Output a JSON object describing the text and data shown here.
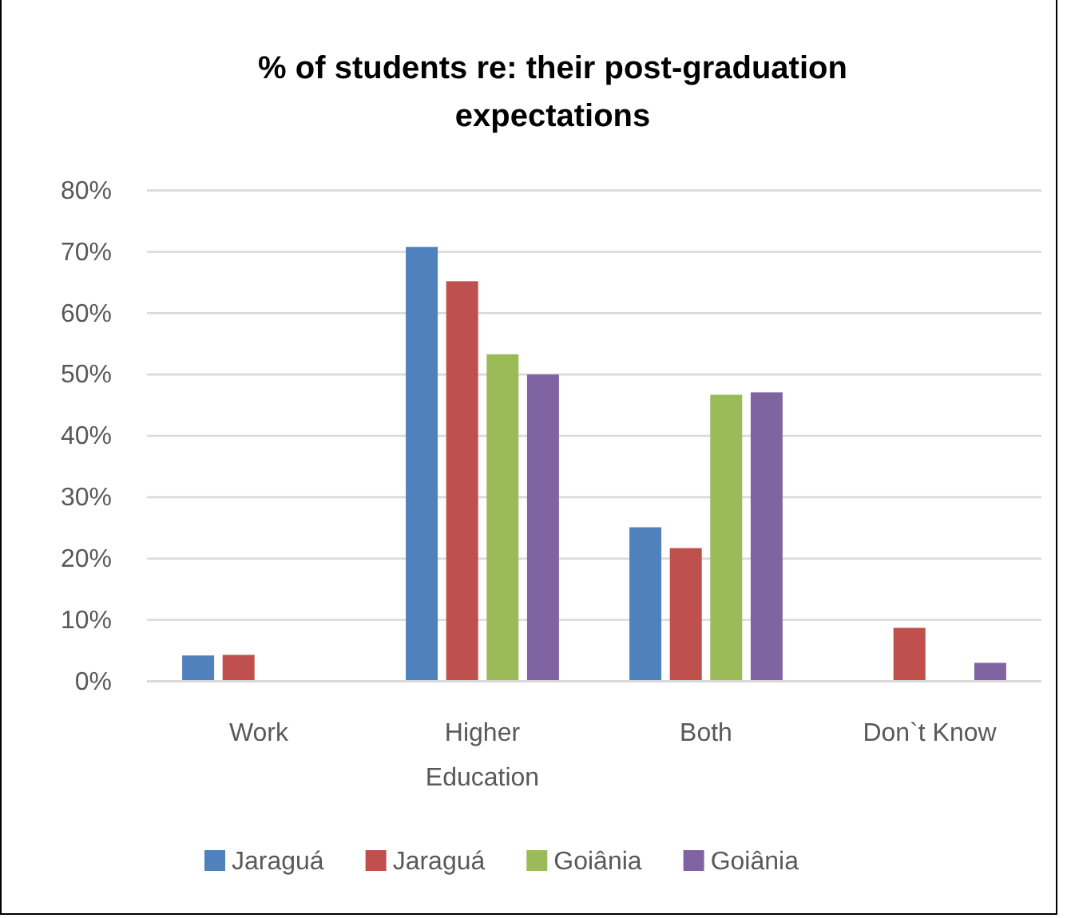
{
  "chart_data": {
    "type": "bar",
    "title": "% of students re: their post-graduation expectations",
    "categories": [
      "Work",
      "Higher Education",
      "Both",
      "Don`t Know"
    ],
    "series": [
      {
        "name": "Jaraguá",
        "color": "#4f81bd",
        "values": [
          4.2,
          70.8,
          25.1,
          null
        ]
      },
      {
        "name": "Jaraguá",
        "color": "#c0504d",
        "values": [
          4.3,
          65.2,
          21.7,
          8.7
        ]
      },
      {
        "name": "Goiânia",
        "color": "#9bbb59",
        "values": [
          null,
          53.3,
          46.7,
          null
        ]
      },
      {
        "name": "Goiânia",
        "color": "#8064a2",
        "values": [
          null,
          50.0,
          47.1,
          3.0
        ]
      }
    ],
    "ylim": [
      0,
      80
    ],
    "yticks": [
      {
        "value": 0,
        "label": "0%"
      },
      {
        "value": 10,
        "label": "10%"
      },
      {
        "value": 20,
        "label": "20%"
      },
      {
        "value": 30,
        "label": "30%"
      },
      {
        "value": 40,
        "label": "40%"
      },
      {
        "value": 50,
        "label": "50%"
      },
      {
        "value": 60,
        "label": "60%"
      },
      {
        "value": 70,
        "label": "70%"
      },
      {
        "value": 80,
        "label": "80%"
      }
    ],
    "grid": "y",
    "legend": "bottom"
  }
}
